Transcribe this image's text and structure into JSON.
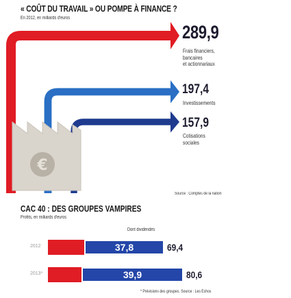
{
  "chart_data": [
    {
      "type": "bar",
      "title": "« COÛT DU TRAVAIL » OU POMPE À FINANCE ?",
      "subtitle": "En 2012, en milliards d'euros",
      "categories": [
        "Frais financiers, bancaires et actionnariaux",
        "Investissements",
        "Cotisations sociales"
      ],
      "values": [
        289.9,
        197.4,
        157.9
      ],
      "value_labels": [
        "289,9",
        "197,4",
        "157,9"
      ],
      "label_lines": [
        [
          "Frais financiers,",
          "bancaires",
          "et actionnariaux"
        ],
        [
          "Investissements"
        ],
        [
          "Cotisations",
          "sociales"
        ]
      ],
      "colors": [
        "#e01c24",
        "#2a6fc4",
        "#1f3b8f"
      ],
      "source": "Source : Comptes de la nation"
    },
    {
      "type": "bar",
      "title": "CAC 40 : DES GROUPES VAMPIRES",
      "subtitle": "Profits, en milliards d'euros",
      "categories": [
        "2012",
        "2013*"
      ],
      "series": [
        {
          "name": "Profits",
          "values": [
            69.4,
            80.6
          ],
          "value_labels": [
            "69,4",
            "80,6"
          ],
          "color": "#e01c24"
        },
        {
          "name": "Dont dividendes",
          "values": [
            37.8,
            39.9
          ],
          "value_labels": [
            "37,8",
            "39,9"
          ],
          "color": "#2346a8"
        }
      ],
      "xlim": [
        0,
        80.6
      ],
      "footnote": "* Prévisions des groupes. Source : Les Échos"
    }
  ]
}
